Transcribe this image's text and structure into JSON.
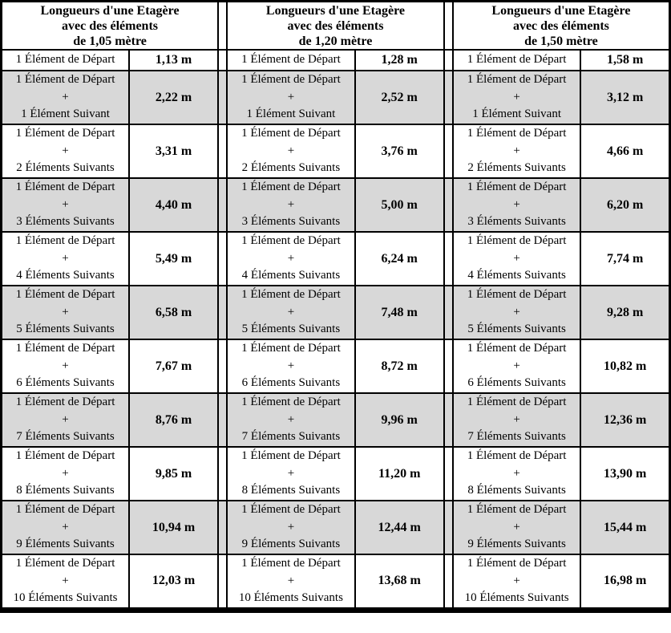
{
  "colors": {
    "stripe_background": "#d8d8d8",
    "row_background": "#ffffff",
    "border": "#000000",
    "text": "#000000"
  },
  "tables": [
    {
      "title_lines": [
        "Longueurs d'une Etagère",
        "avec des éléments",
        "de 1,05 mètre"
      ],
      "rows": [
        {
          "desc_lines": [
            "1 Élément de Départ"
          ],
          "value": "1,13 m"
        },
        {
          "desc_lines": [
            "1 Élément de Départ",
            "+",
            "1 Élément Suivant"
          ],
          "value": "2,22 m"
        },
        {
          "desc_lines": [
            "1 Élément de Départ",
            "+",
            "2 Éléments Suivants"
          ],
          "value": "3,31 m"
        },
        {
          "desc_lines": [
            "1 Élément de Départ",
            "+",
            "3 Éléments Suivants"
          ],
          "value": "4,40 m"
        },
        {
          "desc_lines": [
            "1 Élément de Départ",
            "+",
            "4 Éléments Suivants"
          ],
          "value": "5,49 m"
        },
        {
          "desc_lines": [
            "1 Élément de Départ",
            "+",
            "5 Éléments Suivants"
          ],
          "value": "6,58 m"
        },
        {
          "desc_lines": [
            "1 Élément de Départ",
            "+",
            "6 Éléments Suivants"
          ],
          "value": "7,67 m"
        },
        {
          "desc_lines": [
            "1 Élément de Départ",
            "+",
            "7 Éléments Suivants"
          ],
          "value": "8,76 m"
        },
        {
          "desc_lines": [
            "1 Élément de Départ",
            "+",
            "8 Éléments Suivants"
          ],
          "value": "9,85 m"
        },
        {
          "desc_lines": [
            "1 Élément de Départ",
            "+",
            "9 Éléments Suivants"
          ],
          "value": "10,94 m"
        },
        {
          "desc_lines": [
            "1 Élément de Départ",
            "+",
            "10 Éléments Suivants"
          ],
          "value": "12,03 m"
        }
      ]
    },
    {
      "title_lines": [
        "Longueurs d'une Etagère",
        "avec des éléments",
        "de 1,20 mètre"
      ],
      "rows": [
        {
          "desc_lines": [
            "1 Élément de Départ"
          ],
          "value": "1,28 m"
        },
        {
          "desc_lines": [
            "1 Élément de Départ",
            "+",
            "1 Élément Suivant"
          ],
          "value": "2,52 m"
        },
        {
          "desc_lines": [
            "1 Élément de Départ",
            "+",
            "2 Éléments Suivants"
          ],
          "value": "3,76 m"
        },
        {
          "desc_lines": [
            "1 Élément de Départ",
            "+",
            "3 Éléments Suivants"
          ],
          "value": "5,00 m"
        },
        {
          "desc_lines": [
            "1 Élément de Départ",
            "+",
            "4 Éléments Suivants"
          ],
          "value": "6,24 m"
        },
        {
          "desc_lines": [
            "1 Élément de Départ",
            "+",
            "5 Éléments Suivants"
          ],
          "value": "7,48 m"
        },
        {
          "desc_lines": [
            "1 Élément de Départ",
            "+",
            "6 Éléments Suivants"
          ],
          "value": "8,72 m"
        },
        {
          "desc_lines": [
            "1 Élément de Départ",
            "+",
            "7 Éléments Suivants"
          ],
          "value": "9,96 m"
        },
        {
          "desc_lines": [
            "1 Élément de Départ",
            "+",
            "8 Éléments Suivants"
          ],
          "value": "11,20 m"
        },
        {
          "desc_lines": [
            "1 Élément de Départ",
            "+",
            "9 Éléments Suivants"
          ],
          "value": "12,44 m"
        },
        {
          "desc_lines": [
            "1 Élément de Départ",
            "+",
            "10 Éléments Suivants"
          ],
          "value": "13,68 m"
        }
      ]
    },
    {
      "title_lines": [
        "Longueurs d'une Etagère",
        "avec des éléments",
        "de 1,50 mètre"
      ],
      "rows": [
        {
          "desc_lines": [
            "1 Élément de Départ"
          ],
          "value": "1,58 m"
        },
        {
          "desc_lines": [
            "1 Élément de Départ",
            "+",
            "1 Élément Suivant"
          ],
          "value": "3,12 m"
        },
        {
          "desc_lines": [
            "1 Élément de Départ",
            "+",
            "2 Éléments Suivants"
          ],
          "value": "4,66 m"
        },
        {
          "desc_lines": [
            "1 Élément de Départ",
            "+",
            "3 Éléments Suivants"
          ],
          "value": "6,20 m"
        },
        {
          "desc_lines": [
            "1 Élément de Départ",
            "+",
            "4 Éléments Suivants"
          ],
          "value": "7,74 m"
        },
        {
          "desc_lines": [
            "1 Élément de Départ",
            "+",
            "5 Éléments Suivants"
          ],
          "value": "9,28 m"
        },
        {
          "desc_lines": [
            "1 Élément de Départ",
            "+",
            "6 Éléments Suivants"
          ],
          "value": "10,82 m"
        },
        {
          "desc_lines": [
            "1 Élément de Départ",
            "+",
            "7 Éléments Suivants"
          ],
          "value": "12,36 m"
        },
        {
          "desc_lines": [
            "1 Élément de Départ",
            "+",
            "8 Éléments Suivants"
          ],
          "value": "13,90 m"
        },
        {
          "desc_lines": [
            "1 Élément de Départ",
            "+",
            "9 Éléments Suivants"
          ],
          "value": "15,44 m"
        },
        {
          "desc_lines": [
            "1 Élément de Départ",
            "+",
            "10 Éléments Suivants"
          ],
          "value": "16,98 m"
        }
      ]
    }
  ]
}
